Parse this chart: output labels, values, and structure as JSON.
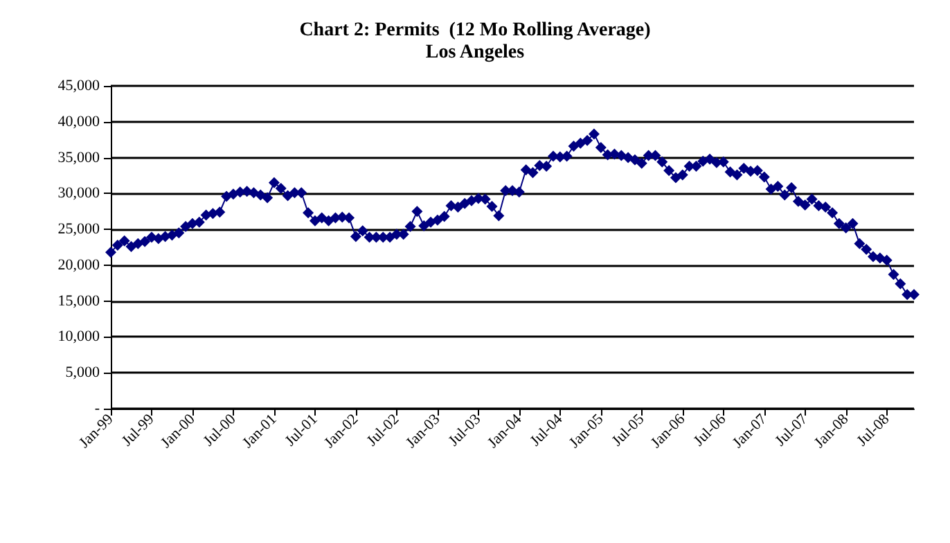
{
  "chart_data": {
    "type": "line",
    "title": "Chart 2: Permits  (12 Mo Rolling Average)",
    "subtitle": "Los Angeles",
    "categories": [
      "Jan-99",
      null,
      null,
      null,
      null,
      null,
      "Jul-99",
      null,
      null,
      null,
      null,
      null,
      "Jan-00",
      null,
      null,
      null,
      null,
      null,
      "Jul-00",
      null,
      null,
      null,
      null,
      null,
      "Jan-01",
      null,
      null,
      null,
      null,
      null,
      "Jul-01",
      null,
      null,
      null,
      null,
      null,
      "Jan-02",
      null,
      null,
      null,
      null,
      null,
      "Jul-02",
      null,
      null,
      null,
      null,
      null,
      "Jan-03",
      null,
      null,
      null,
      null,
      null,
      "Jul-03",
      null,
      null,
      null,
      null,
      null,
      "Jan-04",
      null,
      null,
      null,
      null,
      null,
      "Jul-04",
      null,
      null,
      null,
      null,
      null,
      "Jan-05",
      null,
      null,
      null,
      null,
      null,
      "Jul-05",
      null,
      null,
      null,
      null,
      null,
      "Jan-06",
      null,
      null,
      null,
      null,
      null,
      "Jul-06",
      null,
      null,
      null,
      null,
      null,
      "Jan-07",
      null,
      null,
      null,
      null,
      null,
      "Jul-07",
      null,
      null,
      null,
      null,
      null,
      "Jan-08",
      null,
      null,
      null,
      null,
      null,
      "Jul-08",
      null,
      null,
      null,
      null
    ],
    "series": [
      {
        "color": "#000080",
        "values": [
          21800,
          22800,
          23400,
          22600,
          23000,
          23300,
          23900,
          23700,
          24000,
          24200,
          24500,
          25400,
          25800,
          26000,
          27000,
          27200,
          27400,
          29600,
          29900,
          30200,
          30300,
          30100,
          29800,
          29400,
          31500,
          30700,
          29700,
          30100,
          30100,
          27300,
          26200,
          26600,
          26200,
          26600,
          26700,
          26600,
          24000,
          24800,
          23900,
          23900,
          23900,
          23900,
          24300,
          24300,
          25400,
          27500,
          25500,
          26000,
          26300,
          26800,
          28300,
          28100,
          28600,
          29000,
          29300,
          29200,
          28200,
          26900,
          30400,
          30400,
          30200,
          33300,
          32900,
          33900,
          33800,
          35200,
          35100,
          35200,
          36600,
          37000,
          37400,
          38300,
          36400,
          35400,
          35500,
          35300,
          35000,
          34700,
          34200,
          35300,
          35300,
          34400,
          33200,
          32200,
          32600,
          33800,
          33800,
          34500,
          34800,
          34300,
          34400,
          33000,
          32600,
          33500,
          33100,
          33200,
          32300,
          30600,
          31000,
          29800,
          30800,
          28900,
          28400,
          29200,
          28300,
          28100,
          27300,
          25800,
          25200,
          25800,
          23000,
          22200,
          21200,
          21000,
          20700,
          18700,
          17400,
          15900,
          15900
        ]
      }
    ],
    "ylim": [
      0,
      45000
    ],
    "yticks": [
      {
        "value": 0,
        "label": "-"
      },
      {
        "value": 5000,
        "label": "5,000"
      },
      {
        "value": 10000,
        "label": "10,000"
      },
      {
        "value": 15000,
        "label": "15,000"
      },
      {
        "value": 20000,
        "label": "20,000"
      },
      {
        "value": 25000,
        "label": "25,000"
      },
      {
        "value": 30000,
        "label": "30,000"
      },
      {
        "value": 35000,
        "label": "35,000"
      },
      {
        "value": 40000,
        "label": "40,000"
      },
      {
        "value": 45000,
        "label": "45,000"
      }
    ],
    "grid": "y",
    "marker": "diamond",
    "line_style": "solid"
  }
}
